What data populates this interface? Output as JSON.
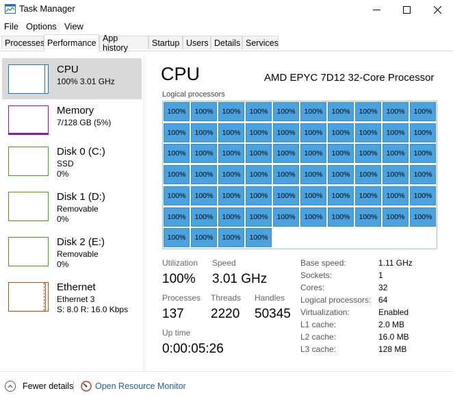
{
  "window": {
    "title": "Task Manager"
  },
  "menu": [
    "File",
    "Options",
    "View"
  ],
  "tabs": [
    "Processes",
    "Performance",
    "App history",
    "Startup",
    "Users",
    "Details",
    "Services"
  ],
  "sidebar": {
    "items": [
      {
        "title": "CPU",
        "line1": "100%  3.01 GHz",
        "line2": "",
        "color": "#1779ba"
      },
      {
        "title": "Memory",
        "line1": "7/128 GB (5%)",
        "line2": "",
        "color": "#8b1aa6"
      },
      {
        "title": "Disk 0 (C:)",
        "line1": "SSD",
        "line2": "0%",
        "color": "#4d9a1e"
      },
      {
        "title": "Disk 1 (D:)",
        "line1": "Removable",
        "line2": "0%",
        "color": "#4d9a1e"
      },
      {
        "title": "Disk 2 (E:)",
        "line1": "Removable",
        "line2": "0%",
        "color": "#4d9a1e"
      },
      {
        "title": "Ethernet",
        "line1": "Ethernet 3",
        "line2": "S: 8.0  R: 16.0 Kbps",
        "color": "#a7560d"
      }
    ]
  },
  "cpu": {
    "title": "CPU",
    "model": "AMD EPYC 7D12 32-Core Processor",
    "logical_label": "Logical processors",
    "cells": [
      "100%",
      "100%",
      "100%",
      "100%",
      "100%",
      "100%",
      "100%",
      "100%",
      "100%",
      "100%",
      "100%",
      "100%",
      "100%",
      "100%",
      "100%",
      "100%",
      "100%",
      "100%",
      "100%",
      "100%",
      "100%",
      "100%",
      "100%",
      "100%",
      "100%",
      "100%",
      "100%",
      "100%",
      "100%",
      "100%",
      "100%",
      "100%",
      "100%",
      "100%",
      "100%",
      "100%",
      "100%",
      "100%",
      "100%",
      "100%",
      "100%",
      "100%",
      "100%",
      "100%",
      "100%",
      "100%",
      "100%",
      "100%",
      "100%",
      "100%",
      "100%",
      "100%",
      "100%",
      "100%",
      "100%",
      "100%",
      "100%",
      "100%",
      "100%",
      "100%",
      "100%",
      "100%",
      "100%",
      "100%"
    ],
    "stats": {
      "utilization_label": "Utilization",
      "utilization": "100%",
      "speed_label": "Speed",
      "speed": "3.01 GHz",
      "processes_label": "Processes",
      "processes": "137",
      "threads_label": "Threads",
      "threads": "2220",
      "handles_label": "Handles",
      "handles": "50345",
      "uptime_label": "Up time",
      "uptime": "0:00:05:26"
    },
    "specs": [
      {
        "label": "Base speed:",
        "value": "1.11 GHz"
      },
      {
        "label": "Sockets:",
        "value": "1"
      },
      {
        "label": "Cores:",
        "value": "32"
      },
      {
        "label": "Logical processors:",
        "value": "64"
      },
      {
        "label": "Virtualization:",
        "value": "Enabled"
      },
      {
        "label": "L1 cache:",
        "value": "2.0 MB"
      },
      {
        "label": "L2 cache:",
        "value": "16.0 MB"
      },
      {
        "label": "L3 cache:",
        "value": "128 MB"
      }
    ]
  },
  "footer": {
    "fewer_details": "Fewer details",
    "resource_monitor": "Open Resource Monitor"
  }
}
